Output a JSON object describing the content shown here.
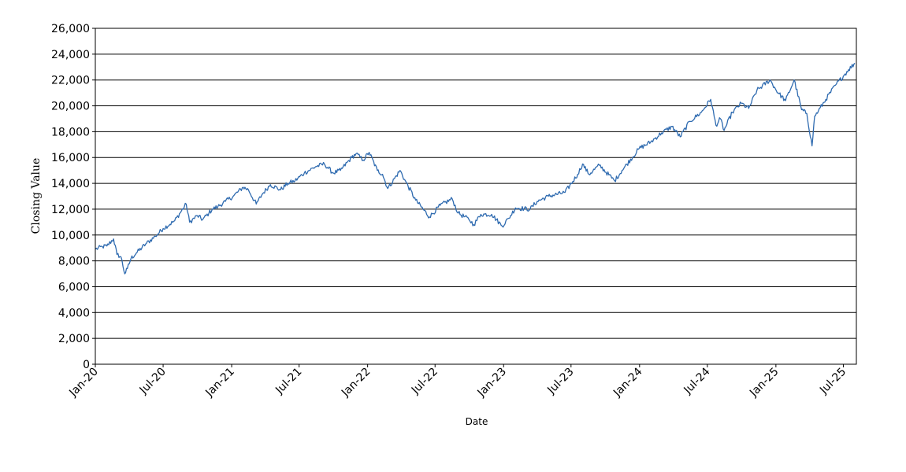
{
  "chart_data": {
    "type": "line",
    "title": "",
    "xlabel": "Date",
    "ylabel": "Closing Value",
    "ylim": [
      0,
      26000
    ],
    "xlim": [
      "2020-01-01",
      "2025-08-05"
    ],
    "grid": "horizontal",
    "line_color": "#2f6bb0",
    "y_ticks": [
      0,
      2000,
      4000,
      6000,
      8000,
      10000,
      12000,
      14000,
      16000,
      18000,
      20000,
      22000,
      24000,
      26000
    ],
    "y_tick_labels": [
      "0",
      "2,000",
      "4,000",
      "6,000",
      "8,000",
      "10,000",
      "12,000",
      "14,000",
      "16,000",
      "18,000",
      "20,000",
      "22,000",
      "24,000",
      "26,000"
    ],
    "x_ticks": [
      "2020-01-01",
      "2020-07-01",
      "2021-01-01",
      "2021-07-01",
      "2022-01-01",
      "2022-07-01",
      "2023-01-01",
      "2023-07-01",
      "2024-01-01",
      "2024-07-01",
      "2025-01-01",
      "2025-07-01"
    ],
    "x_tick_labels": [
      "Jan-20",
      "Jul-20",
      "Jan-21",
      "Jul-21",
      "Jan-22",
      "Jul-22",
      "Jan-23",
      "Jul-23",
      "Jan-24",
      "Jul-24",
      "Jan-25",
      "Jul-25"
    ],
    "series": [
      {
        "x": [
          "2020-01-01",
          "2020-01-20",
          "2020-02-01",
          "2020-02-19",
          "2020-02-28",
          "2020-03-10",
          "2020-03-20",
          "2020-03-27",
          "2020-04-06",
          "2020-04-20",
          "2020-05-15",
          "2020-06-10",
          "2020-07-01",
          "2020-08-01",
          "2020-09-01",
          "2020-09-10",
          "2020-10-01",
          "2020-10-15",
          "2020-11-01",
          "2020-11-10",
          "2020-11-25",
          "2020-12-15",
          "2021-01-05",
          "2021-02-01",
          "2021-02-15",
          "2021-03-08",
          "2021-03-25",
          "2021-04-15",
          "2021-05-12",
          "2021-06-01",
          "2021-06-20",
          "2021-07-15",
          "2021-08-15",
          "2021-09-07",
          "2021-09-30",
          "2021-10-20",
          "2021-11-19",
          "2021-12-01",
          "2021-12-20",
          "2022-01-05",
          "2022-01-27",
          "2022-02-10",
          "2022-02-24",
          "2022-03-29",
          "2022-04-10",
          "2022-05-10",
          "2022-06-16",
          "2022-07-15",
          "2022-08-16",
          "2022-09-01",
          "2022-09-30",
          "2022-10-13",
          "2022-11-01",
          "2022-11-30",
          "2022-12-28",
          "2023-01-15",
          "2023-02-02",
          "2023-03-13",
          "2023-04-01",
          "2023-05-01",
          "2023-06-15",
          "2023-07-19",
          "2023-08-01",
          "2023-08-18",
          "2023-09-15",
          "2023-10-26",
          "2023-11-15",
          "2023-12-31",
          "2024-01-31",
          "2024-02-29",
          "2024-03-28",
          "2024-04-19",
          "2024-05-15",
          "2024-06-15",
          "2024-07-10",
          "2024-07-24",
          "2024-08-05",
          "2024-08-15",
          "2024-09-06",
          "2024-09-30",
          "2024-10-20",
          "2024-11-11",
          "2024-12-16",
          "2025-01-07",
          "2025-01-27",
          "2025-02-19",
          "2025-03-11",
          "2025-03-25",
          "2025-04-08",
          "2025-04-15",
          "2025-04-25",
          "2025-05-15",
          "2025-06-10",
          "2025-07-01",
          "2025-07-15",
          "2025-08-01"
        ],
        "y": [
          8900,
          9100,
          9150,
          9700,
          8500,
          8300,
          7000,
          7400,
          8200,
          8600,
          9300,
          9900,
          10500,
          11100,
          12400,
          11000,
          11500,
          11200,
          11700,
          12000,
          12200,
          12600,
          13000,
          13700,
          13500,
          12400,
          13200,
          13900,
          13500,
          14000,
          14200,
          14800,
          15300,
          15500,
          14800,
          15000,
          16000,
          16300,
          15800,
          16400,
          15000,
          14700,
          13600,
          15000,
          14300,
          12700,
          11400,
          12300,
          12800,
          11700,
          11200,
          10800,
          11600,
          11600,
          10700,
          11300,
          12100,
          12000,
          12600,
          13000,
          13300,
          14700,
          15500,
          14700,
          15400,
          14200,
          15000,
          16700,
          17200,
          17900,
          18400,
          17600,
          18800,
          19500,
          20500,
          18500,
          19000,
          18100,
          19500,
          20200,
          19800,
          21200,
          22000,
          21000,
          20400,
          22000,
          19700,
          19400,
          16900,
          19200,
          19600,
          20500,
          21600,
          22300,
          22800,
          23300
        ]
      }
    ]
  }
}
